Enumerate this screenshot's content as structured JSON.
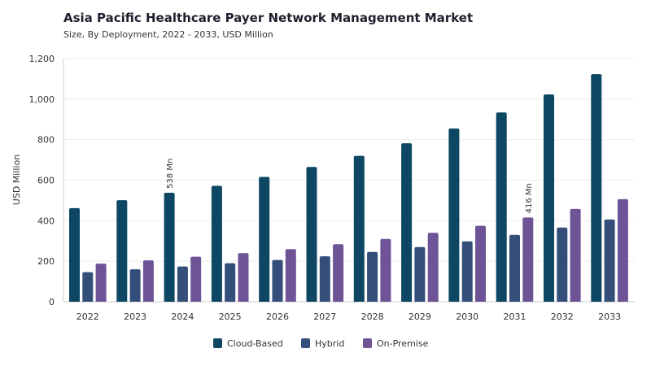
{
  "chart_data": {
    "type": "bar",
    "title": "Asia Pacific Healthcare Payer Network Management Market",
    "subtitle": "Size, By Deployment, 2022 - 2033, USD Million",
    "ylabel": "USD Million",
    "xlabel": "",
    "ylim": [
      0,
      1200
    ],
    "yticks": [
      "0",
      "200",
      "400",
      "600",
      "800",
      "1,000",
      "1,200"
    ],
    "ytick_values": [
      0,
      200,
      400,
      600,
      800,
      1000,
      1200
    ],
    "categories": [
      "2022",
      "2023",
      "2024",
      "2025",
      "2026",
      "2027",
      "2028",
      "2029",
      "2030",
      "2031",
      "2032",
      "2033"
    ],
    "series": [
      {
        "name": "Cloud-Based",
        "color": "#0d4763",
        "values": [
          462,
          501,
          538,
          572,
          616,
          665,
          720,
          782,
          855,
          934,
          1023,
          1123
        ]
      },
      {
        "name": "Hybrid",
        "color": "#344e7a",
        "values": [
          146,
          160,
          174,
          190,
          206,
          224,
          246,
          270,
          298,
          330,
          366,
          406
        ]
      },
      {
        "name": "On-Premise",
        "color": "#6e5496",
        "values": [
          188,
          204,
          222,
          240,
          260,
          284,
          310,
          340,
          375,
          416,
          458,
          506
        ]
      }
    ],
    "annotations": [
      {
        "text": "538 Mn",
        "category": "2024",
        "series": "Cloud-Based"
      },
      {
        "text": "416 Mn",
        "category": "2031",
        "series": "On-Premise"
      }
    ],
    "grid": true,
    "legend_position": "bottom-center"
  }
}
